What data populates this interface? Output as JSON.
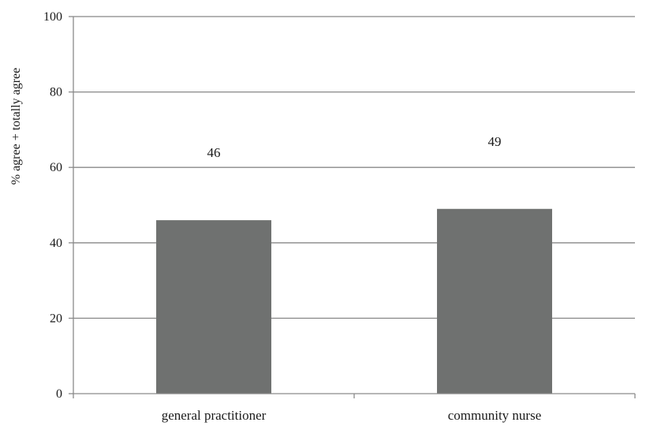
{
  "chart_data": {
    "type": "bar",
    "categories": [
      "general practitioner",
      "community nurse"
    ],
    "series": [
      {
        "values": [
          46,
          49
        ]
      }
    ],
    "data_labels": [
      "46",
      "49"
    ],
    "xlabel": "",
    "ylabel": "% agree + totally agree",
    "ylim": [
      0,
      100
    ],
    "yticks": [
      0,
      20,
      40,
      60,
      80,
      100
    ],
    "ytick_labels": [
      "0",
      "20",
      "40",
      "60",
      "80",
      "100"
    ],
    "grid": true,
    "legend": "none",
    "colors": {
      "bar": "#6f7170",
      "grid": "#888888",
      "axis": "#8a8a8a"
    }
  }
}
